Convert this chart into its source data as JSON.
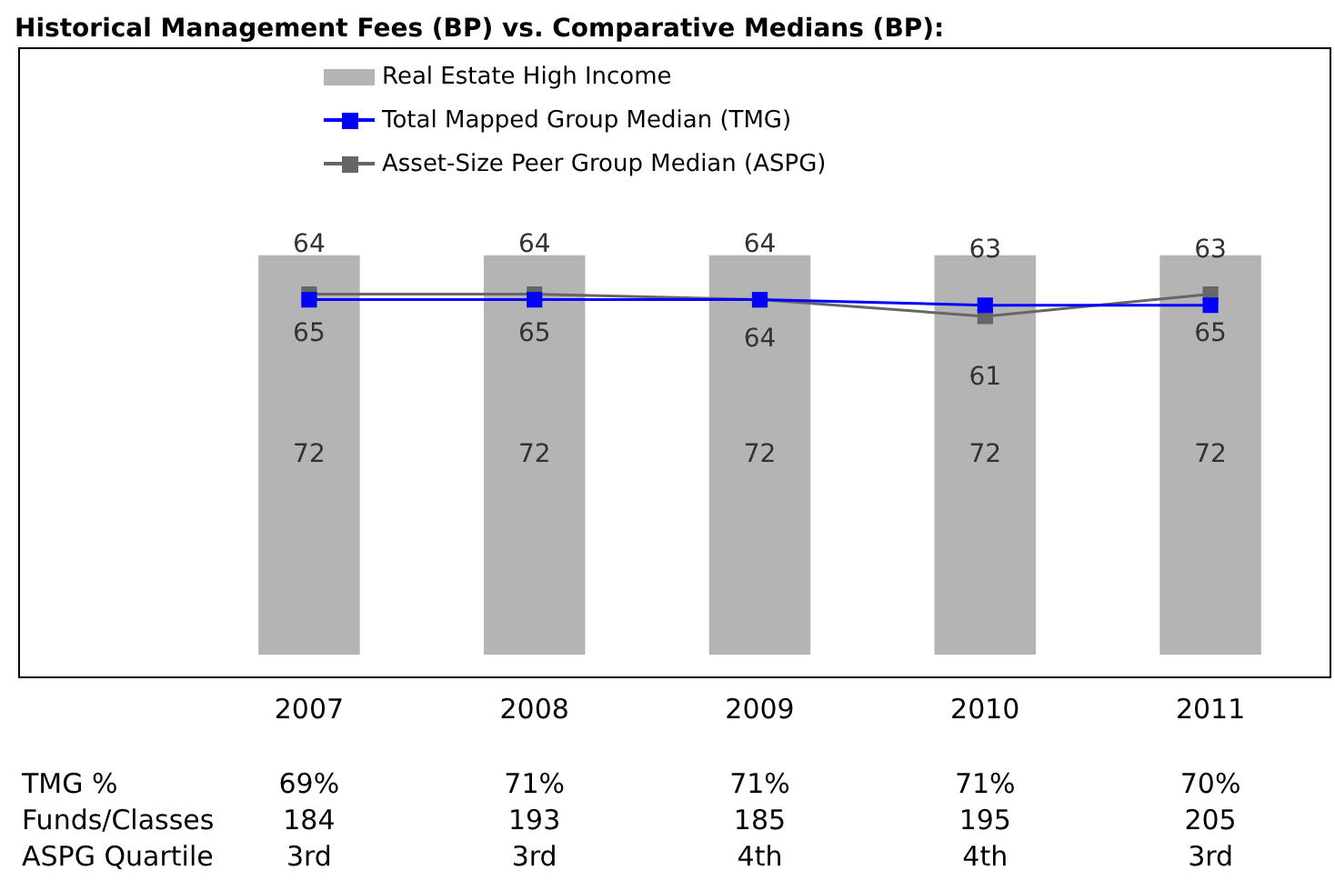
{
  "chart_data": {
    "type": "bar",
    "title": "Historical Management Fees (BP) vs. Comparative Medians (BP):",
    "categories": [
      "2007",
      "2008",
      "2009",
      "2010",
      "2011"
    ],
    "series": [
      {
        "name": "Real Estate High Income",
        "color": "#b4b4b4",
        "values": [
          72,
          72,
          72,
          72,
          72
        ]
      },
      {
        "name": "Total Mapped Group Median (TMG)",
        "type": "line",
        "color": "#0000ff",
        "values": [
          64,
          64,
          64,
          63,
          63
        ]
      },
      {
        "name": "Asset-Size Peer Group Median (ASPG)",
        "type": "line",
        "color": "#666666",
        "values": [
          65,
          65,
          64,
          61,
          65
        ]
      }
    ],
    "data_labels": true,
    "legend": "top",
    "marker": "square",
    "tick_labels": "x",
    "annotations": [
      "TMG %",
      "69%",
      "71%",
      "71%",
      "71%",
      "70%",
      "Funds/Classes",
      "184",
      "193",
      "185",
      "195",
      "205",
      "ASPG Quartile",
      "3rd",
      "3rd",
      "4th",
      "4th",
      "3rd"
    ]
  }
}
